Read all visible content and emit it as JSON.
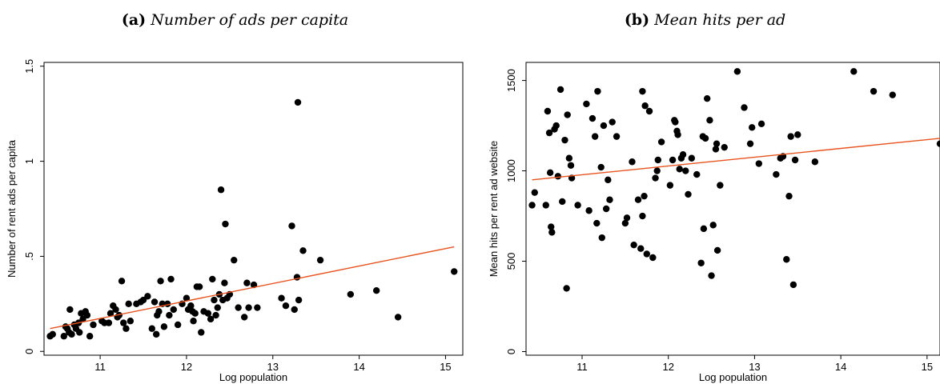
{
  "captions": [
    {
      "tag": "(a)",
      "text": "Number of ads per capita"
    },
    {
      "tag": "(b)",
      "text": "Mean hits per ad"
    }
  ],
  "colors": {
    "points": "#000000",
    "fit_line": "#e8521e",
    "frame": "#000000"
  },
  "chart_data": [
    {
      "type": "scatter",
      "xlabel": "Log population",
      "ylabel": "Number of rent ads per capita",
      "xlim": [
        10.35,
        15.2
      ],
      "ylim": [
        -0.02,
        1.52
      ],
      "xticks": [
        11,
        12,
        13,
        14,
        15
      ],
      "xtick_labels": [
        "11",
        "12",
        "13",
        "14",
        "15"
      ],
      "yticks": [
        0,
        0.5,
        1,
        1.5
      ],
      "ytick_labels": [
        "0",
        ".5",
        "1",
        "1.5"
      ],
      "grid": false,
      "fit_line": {
        "x": [
          10.42,
          15.1
        ],
        "y": [
          0.12,
          0.55
        ]
      },
      "points": [
        [
          10.42,
          0.08
        ],
        [
          10.45,
          0.09
        ],
        [
          10.58,
          0.08
        ],
        [
          10.6,
          0.13
        ],
        [
          10.62,
          0.12
        ],
        [
          10.64,
          0.1
        ],
        [
          10.65,
          0.22
        ],
        [
          10.67,
          0.09
        ],
        [
          10.7,
          0.14
        ],
        [
          10.72,
          0.12
        ],
        [
          10.75,
          0.15
        ],
        [
          10.76,
          0.1
        ],
        [
          10.78,
          0.2
        ],
        [
          10.8,
          0.17
        ],
        [
          10.83,
          0.21
        ],
        [
          10.85,
          0.19
        ],
        [
          10.88,
          0.08
        ],
        [
          10.92,
          0.14
        ],
        [
          11.02,
          0.16
        ],
        [
          11.05,
          0.15
        ],
        [
          11.1,
          0.15
        ],
        [
          11.12,
          0.2
        ],
        [
          11.15,
          0.24
        ],
        [
          11.18,
          0.22
        ],
        [
          11.2,
          0.18
        ],
        [
          11.22,
          0.19
        ],
        [
          11.25,
          0.37
        ],
        [
          11.27,
          0.15
        ],
        [
          11.3,
          0.12
        ],
        [
          11.33,
          0.25
        ],
        [
          11.35,
          0.16
        ],
        [
          11.42,
          0.25
        ],
        [
          11.47,
          0.26
        ],
        [
          11.5,
          0.27
        ],
        [
          11.55,
          0.29
        ],
        [
          11.6,
          0.12
        ],
        [
          11.63,
          0.26
        ],
        [
          11.65,
          0.09
        ],
        [
          11.66,
          0.19
        ],
        [
          11.68,
          0.21
        ],
        [
          11.7,
          0.37
        ],
        [
          11.72,
          0.25
        ],
        [
          11.74,
          0.13
        ],
        [
          11.78,
          0.25
        ],
        [
          11.8,
          0.19
        ],
        [
          11.82,
          0.38
        ],
        [
          11.85,
          0.22
        ],
        [
          11.9,
          0.14
        ],
        [
          11.95,
          0.25
        ],
        [
          12.0,
          0.28
        ],
        [
          12.02,
          0.22
        ],
        [
          12.05,
          0.24
        ],
        [
          12.07,
          0.21
        ],
        [
          12.08,
          0.16
        ],
        [
          12.1,
          0.2
        ],
        [
          12.12,
          0.34
        ],
        [
          12.15,
          0.34
        ],
        [
          12.17,
          0.1
        ],
        [
          12.2,
          0.21
        ],
        [
          12.25,
          0.2
        ],
        [
          12.28,
          0.17
        ],
        [
          12.3,
          0.38
        ],
        [
          12.32,
          0.27
        ],
        [
          12.34,
          0.19
        ],
        [
          12.36,
          0.23
        ],
        [
          12.38,
          0.3
        ],
        [
          12.4,
          0.85
        ],
        [
          12.42,
          0.27
        ],
        [
          12.44,
          0.36
        ],
        [
          12.45,
          0.67
        ],
        [
          12.47,
          0.28
        ],
        [
          12.5,
          0.3
        ],
        [
          12.55,
          0.48
        ],
        [
          12.6,
          0.23
        ],
        [
          12.67,
          0.18
        ],
        [
          12.7,
          0.36
        ],
        [
          12.72,
          0.23
        ],
        [
          12.78,
          0.35
        ],
        [
          12.82,
          0.23
        ],
        [
          13.1,
          0.28
        ],
        [
          13.15,
          0.24
        ],
        [
          13.22,
          0.66
        ],
        [
          13.25,
          0.22
        ],
        [
          13.28,
          0.39
        ],
        [
          13.29,
          1.31
        ],
        [
          13.3,
          0.27
        ],
        [
          13.35,
          0.53
        ],
        [
          13.55,
          0.48
        ],
        [
          13.9,
          0.3
        ],
        [
          14.2,
          0.32
        ],
        [
          14.45,
          0.18
        ],
        [
          15.1,
          0.42
        ]
      ]
    },
    {
      "type": "scatter",
      "xlabel": "Log population",
      "ylabel": "Mean hits per rent ad website",
      "xlim": [
        10.35,
        15.15
      ],
      "ylim": [
        -20,
        1600
      ],
      "xticks": [
        11,
        12,
        13,
        14,
        15
      ],
      "xtick_labels": [
        "11",
        "12",
        "13",
        "14",
        "15"
      ],
      "yticks": [
        0,
        500,
        1000,
        1500
      ],
      "ytick_labels": [
        "0",
        "500",
        "1000",
        "1500"
      ],
      "grid": false,
      "fit_line": {
        "x": [
          10.42,
          15.15
        ],
        "y": [
          950,
          1180
        ]
      },
      "points": [
        [
          10.42,
          810
        ],
        [
          10.45,
          880
        ],
        [
          10.58,
          810
        ],
        [
          10.6,
          1330
        ],
        [
          10.62,
          1210
        ],
        [
          10.63,
          990
        ],
        [
          10.64,
          690
        ],
        [
          10.65,
          660
        ],
        [
          10.68,
          1230
        ],
        [
          10.7,
          1250
        ],
        [
          10.72,
          970
        ],
        [
          10.75,
          1450
        ],
        [
          10.77,
          830
        ],
        [
          10.8,
          1170
        ],
        [
          10.82,
          350
        ],
        [
          10.83,
          1310
        ],
        [
          10.85,
          1070
        ],
        [
          10.87,
          1030
        ],
        [
          10.88,
          960
        ],
        [
          10.95,
          810
        ],
        [
          11.05,
          1370
        ],
        [
          11.08,
          780
        ],
        [
          11.12,
          1290
        ],
        [
          11.15,
          1190
        ],
        [
          11.17,
          710
        ],
        [
          11.18,
          1440
        ],
        [
          11.22,
          1020
        ],
        [
          11.23,
          630
        ],
        [
          11.25,
          1250
        ],
        [
          11.28,
          790
        ],
        [
          11.3,
          950
        ],
        [
          11.32,
          840
        ],
        [
          11.35,
          1270
        ],
        [
          11.4,
          1190
        ],
        [
          11.5,
          710
        ],
        [
          11.52,
          740
        ],
        [
          11.58,
          1050
        ],
        [
          11.6,
          590
        ],
        [
          11.65,
          840
        ],
        [
          11.68,
          570
        ],
        [
          11.7,
          750
        ],
        [
          11.7,
          1440
        ],
        [
          11.72,
          860
        ],
        [
          11.73,
          1360
        ],
        [
          11.75,
          540
        ],
        [
          11.78,
          1330
        ],
        [
          11.82,
          520
        ],
        [
          11.85,
          960
        ],
        [
          11.87,
          1000
        ],
        [
          11.88,
          1060
        ],
        [
          11.92,
          1160
        ],
        [
          12.02,
          920
        ],
        [
          12.05,
          1060
        ],
        [
          12.07,
          1280
        ],
        [
          12.08,
          1270
        ],
        [
          12.1,
          1220
        ],
        [
          12.11,
          1200
        ],
        [
          12.13,
          1010
        ],
        [
          12.15,
          1070
        ],
        [
          12.17,
          1090
        ],
        [
          12.2,
          1000
        ],
        [
          12.23,
          870
        ],
        [
          12.27,
          1070
        ],
        [
          12.33,
          980
        ],
        [
          12.38,
          490
        ],
        [
          12.4,
          1190
        ],
        [
          12.41,
          680
        ],
        [
          12.43,
          1180
        ],
        [
          12.45,
          1400
        ],
        [
          12.48,
          1280
        ],
        [
          12.5,
          420
        ],
        [
          12.52,
          700
        ],
        [
          12.55,
          1120
        ],
        [
          12.56,
          1150
        ],
        [
          12.57,
          560
        ],
        [
          12.6,
          920
        ],
        [
          12.65,
          1130
        ],
        [
          12.8,
          1550
        ],
        [
          12.88,
          1350
        ],
        [
          12.95,
          1150
        ],
        [
          12.97,
          1240
        ],
        [
          13.05,
          1040
        ],
        [
          13.08,
          1260
        ],
        [
          13.25,
          980
        ],
        [
          13.3,
          1070
        ],
        [
          13.33,
          1080
        ],
        [
          13.37,
          510
        ],
        [
          13.4,
          860
        ],
        [
          13.42,
          1190
        ],
        [
          13.45,
          370
        ],
        [
          13.47,
          1060
        ],
        [
          13.5,
          1200
        ],
        [
          13.7,
          1050
        ],
        [
          14.15,
          1550
        ],
        [
          14.38,
          1440
        ],
        [
          14.6,
          1420
        ],
        [
          15.15,
          1150
        ]
      ]
    }
  ]
}
